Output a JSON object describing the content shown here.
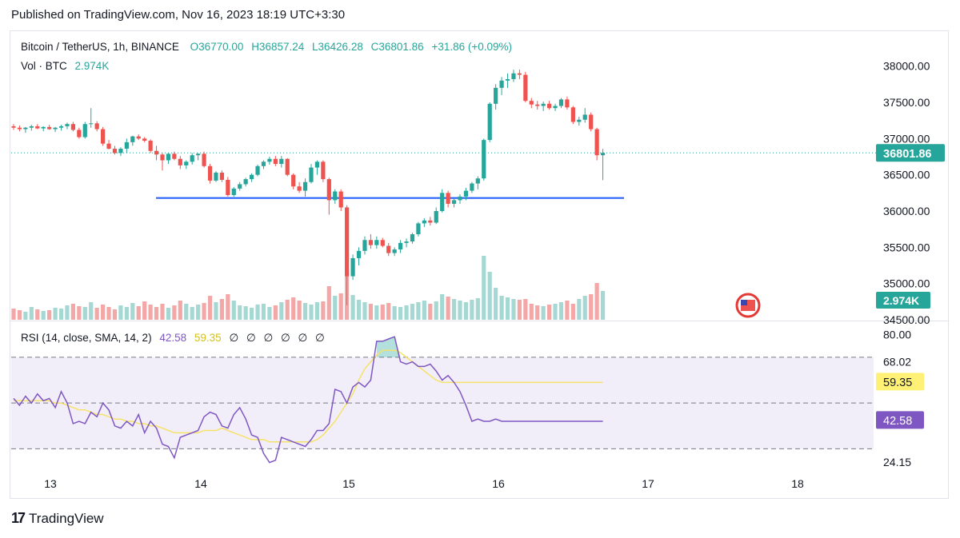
{
  "published": "Published on TradingView.com, Nov 16, 2023 18:19 UTC+3:30",
  "legend": {
    "symbol": "Bitcoin / TetherUS, 1h, BINANCE",
    "open": "O36770.00",
    "high": "H36857.24",
    "low": "L36426.28",
    "close": "C36801.86",
    "change": "+31.86 (+0.09%)",
    "vol_label": "Vol · BTC",
    "vol_value": "2.974K"
  },
  "rsi_legend": {
    "label": "RSI (14, close, SMA, 14, 2)",
    "rsi": "42.58",
    "sma": "59.35",
    "extras": "∅ ∅ ∅ ∅ ∅ ∅"
  },
  "footer": {
    "brand": "TradingView",
    "logo": "17"
  },
  "colors": {
    "up": "#26a69a",
    "down": "#ef5350",
    "vol_up": "#a6d8d3",
    "vol_down": "#f4a7a7",
    "rsi_line": "#7e57c2",
    "rsi_sma": "#f5e26a",
    "support_line": "#2962ff",
    "price_badge": "#26a69a",
    "rsi_badge": "#7e57c2",
    "sma_badge": "#fff176"
  },
  "chart_data": [
    {
      "type": "candlestick",
      "x_tick_labels": [
        "13",
        "14",
        "15",
        "16",
        "17",
        "18"
      ],
      "y_tick_labels": [
        "38000.00",
        "37500.00",
        "37000.00",
        "36500.00",
        "36000.00",
        "35500.00",
        "35000.00",
        "34500.00"
      ],
      "ylim": [
        34500,
        38250
      ],
      "last_price": "36801.86",
      "support_level": 36180,
      "ohlc": [
        [
          37170,
          37200,
          37120,
          37150
        ],
        [
          37150,
          37180,
          37100,
          37130
        ],
        [
          37130,
          37160,
          37080,
          37150
        ],
        [
          37150,
          37190,
          37110,
          37170
        ],
        [
          37170,
          37200,
          37130,
          37140
        ],
        [
          37140,
          37170,
          37100,
          37160
        ],
        [
          37160,
          37190,
          37120,
          37130
        ],
        [
          37130,
          37160,
          37090,
          37150
        ],
        [
          37150,
          37190,
          37110,
          37170
        ],
        [
          37170,
          37220,
          37130,
          37200
        ],
        [
          37200,
          37230,
          37100,
          37120
        ],
        [
          37120,
          37150,
          37000,
          37020
        ],
        [
          37020,
          37230,
          37000,
          37200
        ],
        [
          37200,
          37420,
          37150,
          37210
        ],
        [
          37210,
          37240,
          37100,
          37130
        ],
        [
          37130,
          37160,
          36900,
          36930
        ],
        [
          36930,
          36980,
          36850,
          36860
        ],
        [
          36860,
          36900,
          36780,
          36800
        ],
        [
          36800,
          36880,
          36760,
          36860
        ],
        [
          36860,
          37000,
          36800,
          36950
        ],
        [
          36950,
          37040,
          36900,
          37030
        ],
        [
          37030,
          37060,
          36980,
          37000
        ],
        [
          37000,
          37020,
          36950,
          36970
        ],
        [
          36970,
          36990,
          36800,
          36830
        ],
        [
          36830,
          36900,
          36700,
          36780
        ],
        [
          36780,
          36800,
          36560,
          36700
        ],
        [
          36700,
          36800,
          36650,
          36790
        ],
        [
          36790,
          36820,
          36700,
          36720
        ],
        [
          36720,
          36760,
          36580,
          36630
        ],
        [
          36630,
          36700,
          36580,
          36680
        ],
        [
          36680,
          36800,
          36640,
          36770
        ],
        [
          36770,
          36800,
          36700,
          36790
        ],
        [
          36790,
          36820,
          36600,
          36620
        ],
        [
          36620,
          36650,
          36380,
          36420
        ],
        [
          36420,
          36550,
          36400,
          36530
        ],
        [
          36530,
          36560,
          36400,
          36430
        ],
        [
          36430,
          36470,
          36200,
          36220
        ],
        [
          36220,
          36330,
          36200,
          36310
        ],
        [
          36310,
          36400,
          36280,
          36370
        ],
        [
          36370,
          36460,
          36340,
          36440
        ],
        [
          36440,
          36520,
          36400,
          36500
        ],
        [
          36500,
          36640,
          36480,
          36620
        ],
        [
          36620,
          36700,
          36580,
          36680
        ],
        [
          36680,
          36750,
          36640,
          36720
        ],
        [
          36720,
          36760,
          36620,
          36650
        ],
        [
          36650,
          36760,
          36600,
          36720
        ],
        [
          36720,
          36730,
          36480,
          36500
        ],
        [
          36500,
          36520,
          36300,
          36340
        ],
        [
          36340,
          36400,
          36250,
          36280
        ],
        [
          36280,
          36450,
          36200,
          36400
        ],
        [
          36400,
          36650,
          36380,
          36600
        ],
        [
          36600,
          36700,
          36500,
          36680
        ],
        [
          36680,
          36700,
          36400,
          36440
        ],
        [
          36440,
          36460,
          35950,
          36150
        ],
        [
          36150,
          36300,
          36100,
          36270
        ],
        [
          36270,
          36300,
          36000,
          36050
        ],
        [
          36050,
          36080,
          34700,
          35100
        ],
        [
          35100,
          35400,
          35050,
          35350
        ],
        [
          35350,
          35500,
          35250,
          35450
        ],
        [
          35450,
          35650,
          35400,
          35600
        ],
        [
          35600,
          35680,
          35480,
          35530
        ],
        [
          35530,
          35650,
          35480,
          35600
        ],
        [
          35600,
          35630,
          35500,
          35520
        ],
        [
          35520,
          35560,
          35380,
          35420
        ],
        [
          35420,
          35500,
          35380,
          35470
        ],
        [
          35470,
          35600,
          35420,
          35560
        ],
        [
          35560,
          35620,
          35500,
          35580
        ],
        [
          35580,
          35700,
          35550,
          35680
        ],
        [
          35680,
          35850,
          35650,
          35830
        ],
        [
          35830,
          35900,
          35780,
          35870
        ],
        [
          35870,
          35920,
          35800,
          35840
        ],
        [
          35840,
          36050,
          35820,
          36000
        ],
        [
          36000,
          36300,
          35980,
          36250
        ],
        [
          36250,
          36280,
          36050,
          36100
        ],
        [
          36100,
          36180,
          36050,
          36150
        ],
        [
          36150,
          36230,
          36100,
          36200
        ],
        [
          36200,
          36320,
          36150,
          36280
        ],
        [
          36280,
          36400,
          36250,
          36380
        ],
        [
          36380,
          36480,
          36300,
          36450
        ],
        [
          36450,
          37000,
          36420,
          36980
        ],
        [
          36980,
          37500,
          36950,
          37480
        ],
        [
          37480,
          37750,
          37400,
          37700
        ],
        [
          37700,
          37850,
          37600,
          37800
        ],
        [
          37800,
          37900,
          37700,
          37820
        ],
        [
          37820,
          37950,
          37780,
          37900
        ],
        [
          37900,
          37950,
          37820,
          37880
        ],
        [
          37880,
          37920,
          37500,
          37520
        ],
        [
          37520,
          37560,
          37420,
          37470
        ],
        [
          37470,
          37520,
          37400,
          37450
        ],
        [
          37450,
          37510,
          37380,
          37480
        ],
        [
          37480,
          37520,
          37400,
          37420
        ],
        [
          37420,
          37480,
          37380,
          37450
        ],
        [
          37450,
          37560,
          37420,
          37540
        ],
        [
          37540,
          37580,
          37400,
          37430
        ],
        [
          37430,
          37450,
          37200,
          37230
        ],
        [
          37230,
          37300,
          37180,
          37260
        ],
        [
          37260,
          37420,
          37220,
          37330
        ],
        [
          37330,
          37360,
          37100,
          37130
        ],
        [
          37130,
          37150,
          36700,
          36770
        ],
        [
          36770,
          36857,
          36426,
          36802
        ]
      ],
      "volume_scale": [
        1.4,
        1.2,
        1.0,
        1.6,
        1.3,
        1.1,
        1.2,
        1.5,
        1.4,
        1.8,
        2.0,
        1.7,
        1.6,
        2.2,
        1.5,
        1.9,
        1.6,
        1.3,
        1.8,
        1.6,
        2.1,
        1.7,
        2.3,
        1.9,
        1.6,
        2.0,
        1.5,
        1.8,
        2.4,
        2.0,
        1.6,
        1.9,
        2.1,
        3.0,
        2.2,
        2.6,
        3.2,
        2.4,
        1.8,
        1.7,
        1.5,
        1.9,
        2.0,
        1.6,
        1.8,
        2.2,
        2.5,
        2.8,
        2.4,
        2.1,
        1.9,
        2.2,
        2.3,
        4.2,
        3.0,
        3.3,
        6.0,
        3.1,
        2.5,
        2.2,
        2.0,
        1.8,
        1.9,
        2.1,
        1.7,
        1.6,
        1.8,
        2.0,
        2.2,
        2.4,
        2.0,
        2.3,
        3.2,
        2.9,
        2.6,
        2.4,
        2.2,
        2.5,
        2.7,
        8.0,
        6.0,
        4.0,
        3.0,
        2.8,
        2.6,
        2.5,
        2.6,
        2.0,
        1.8,
        1.7,
        1.9,
        2.0,
        2.2,
        2.4,
        2.0,
        2.6,
        3.0,
        3.2,
        4.6,
        3.6
      ]
    },
    {
      "type": "line",
      "name": "RSI",
      "x_tick_labels": [
        "13",
        "14",
        "15",
        "16",
        "17",
        "18"
      ],
      "y_tick_labels": [
        "80.00",
        "68.02",
        "24.15"
      ],
      "ylim": [
        20,
        85
      ],
      "bands": [
        70,
        50,
        30
      ],
      "last_rsi": "42.58",
      "last_sma": "59.35",
      "rsi": [
        52,
        49,
        53,
        50,
        54,
        51,
        52,
        48,
        55,
        50,
        41,
        42,
        41,
        46,
        44,
        50,
        47,
        40,
        39,
        42,
        40,
        45,
        37,
        42,
        39,
        32,
        31,
        26,
        35,
        36,
        37,
        38,
        44,
        46,
        45,
        40,
        39,
        45,
        48,
        43,
        36,
        35,
        28,
        24,
        25,
        35,
        34,
        33,
        32,
        31,
        34,
        38,
        38,
        41,
        56,
        55,
        50,
        57,
        59,
        57,
        60,
        77,
        77,
        78,
        79,
        68,
        67,
        68,
        66,
        66,
        67,
        64,
        60,
        62,
        59,
        55,
        49,
        42,
        43,
        42,
        42,
        43,
        42,
        42,
        42,
        42,
        42,
        42,
        42,
        42,
        42,
        42,
        42,
        42,
        42,
        42,
        42,
        42,
        42,
        42
      ],
      "sma": [
        51,
        51,
        51,
        51,
        51,
        51,
        51,
        50,
        50,
        49,
        48,
        47,
        47,
        46,
        45,
        45,
        44,
        43,
        43,
        42,
        42,
        41,
        41,
        40,
        40,
        39,
        38,
        37,
        37,
        37,
        37,
        37,
        38,
        38,
        38,
        39,
        38,
        37,
        36,
        35,
        34,
        34,
        34,
        33,
        33,
        33,
        33,
        33,
        33,
        33,
        33,
        34,
        36,
        39,
        42,
        46,
        50,
        54,
        60,
        65,
        68,
        71,
        73,
        73,
        73,
        72,
        70,
        68,
        66,
        64,
        62,
        60,
        59,
        59,
        59,
        59,
        59,
        59,
        59,
        59,
        59,
        59,
        59,
        59,
        59,
        59,
        59,
        59,
        59,
        59,
        59,
        59,
        59,
        59,
        59,
        59,
        59,
        59,
        59,
        59
      ]
    }
  ]
}
